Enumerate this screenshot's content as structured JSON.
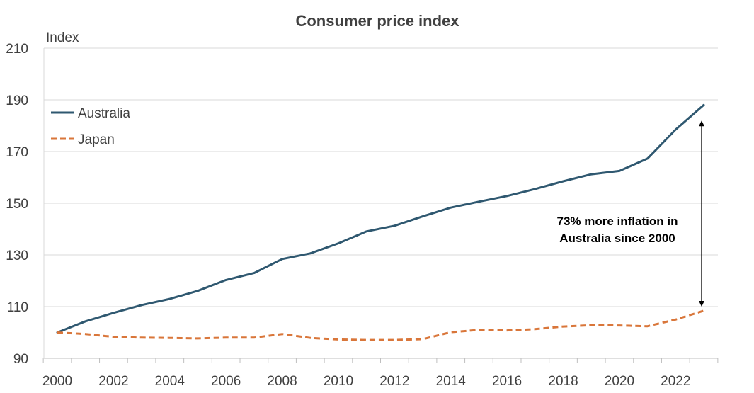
{
  "chart_data": {
    "type": "line",
    "title": "Consumer price index",
    "ylabel": "Index",
    "xlabel": "",
    "ylim": [
      90,
      210
    ],
    "yticks": [
      90,
      110,
      130,
      150,
      170,
      190,
      210
    ],
    "xlim": [
      2000,
      2023
    ],
    "xticks": [
      2000,
      2002,
      2004,
      2006,
      2008,
      2010,
      2012,
      2014,
      2016,
      2018,
      2020,
      2022
    ],
    "grid": true,
    "legend": "left",
    "x": [
      2000,
      2001,
      2002,
      2003,
      2004,
      2005,
      2006,
      2007,
      2008,
      2009,
      2010,
      2011,
      2012,
      2013,
      2014,
      2015,
      2016,
      2017,
      2018,
      2019,
      2020,
      2021,
      2022,
      2023
    ],
    "series": [
      {
        "name": "Australia",
        "color": "#2f5870",
        "style": "solid",
        "values": [
          100,
          104.3,
          107.6,
          110.6,
          113.0,
          116.1,
          120.3,
          123.0,
          128.4,
          130.6,
          134.5,
          139.1,
          141.3,
          144.9,
          148.3,
          150.6,
          152.8,
          155.5,
          158.5,
          161.2,
          162.5,
          167.3,
          178.5,
          188.0
        ]
      },
      {
        "name": "Japan",
        "color": "#d9763a",
        "style": "dashed",
        "values": [
          100,
          99.4,
          98.3,
          98.0,
          97.9,
          97.7,
          98.0,
          98.0,
          99.4,
          97.9,
          97.3,
          97.1,
          97.1,
          97.4,
          100.1,
          101.0,
          100.8,
          101.3,
          102.3,
          102.8,
          102.7,
          102.4,
          105.0,
          108.4
        ]
      }
    ],
    "annotation": {
      "lines": [
        "73% more inflation in",
        "Australia since 2000"
      ],
      "arrow_year": 2023,
      "arrow_from": 110,
      "arrow_to": 182
    }
  }
}
